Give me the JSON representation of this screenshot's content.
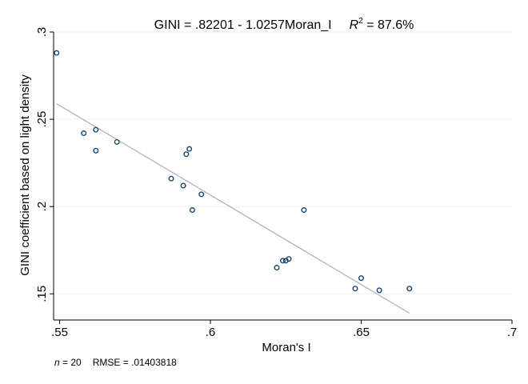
{
  "chart_data": {
    "type": "scatter",
    "title": {
      "main": "GINI = .82201 - 1.0257Moran_I",
      "r2_symbol": "R",
      "r2_sup": "2",
      "r2_value": " = 87.6%"
    },
    "xlabel": "Moran's I",
    "ylabel": "GINI coefficient based on light density",
    "xlim": [
      0.548,
      0.7
    ],
    "ylim": [
      0.135,
      0.3
    ],
    "xticks": [
      {
        "value": 0.55,
        "label": ".55"
      },
      {
        "value": 0.6,
        "label": ".6"
      },
      {
        "value": 0.65,
        "label": ".65"
      },
      {
        "value": 0.7,
        "label": ".7"
      }
    ],
    "yticks": [
      {
        "value": 0.15,
        "label": ".15"
      },
      {
        "value": 0.2,
        "label": ".2"
      },
      {
        "value": 0.25,
        "label": ".25"
      },
      {
        "value": 0.3,
        "label": ".3"
      }
    ],
    "grid": true,
    "points": [
      {
        "x": 0.549,
        "y": 0.288
      },
      {
        "x": 0.558,
        "y": 0.242
      },
      {
        "x": 0.562,
        "y": 0.244
      },
      {
        "x": 0.562,
        "y": 0.232
      },
      {
        "x": 0.569,
        "y": 0.237
      },
      {
        "x": 0.587,
        "y": 0.216
      },
      {
        "x": 0.591,
        "y": 0.212
      },
      {
        "x": 0.592,
        "y": 0.23
      },
      {
        "x": 0.593,
        "y": 0.233
      },
      {
        "x": 0.594,
        "y": 0.198
      },
      {
        "x": 0.597,
        "y": 0.207
      },
      {
        "x": 0.622,
        "y": 0.165
      },
      {
        "x": 0.624,
        "y": 0.169
      },
      {
        "x": 0.625,
        "y": 0.169
      },
      {
        "x": 0.626,
        "y": 0.17
      },
      {
        "x": 0.631,
        "y": 0.198
      },
      {
        "x": 0.648,
        "y": 0.153
      },
      {
        "x": 0.65,
        "y": 0.159
      },
      {
        "x": 0.656,
        "y": 0.152
      },
      {
        "x": 0.666,
        "y": 0.153
      }
    ],
    "fit_line": {
      "intercept": 0.82201,
      "slope": -1.0257,
      "x_range": [
        0.549,
        0.666
      ]
    },
    "colors": {
      "marker_stroke": "#1a476f",
      "fit_line": "#b4b4b4",
      "grid": "#eaf2f3",
      "axis": "#000000"
    }
  },
  "footnote": {
    "n_symbol": "n",
    "n_value": " = 20",
    "rmse": "RMSE =  .01403818"
  }
}
